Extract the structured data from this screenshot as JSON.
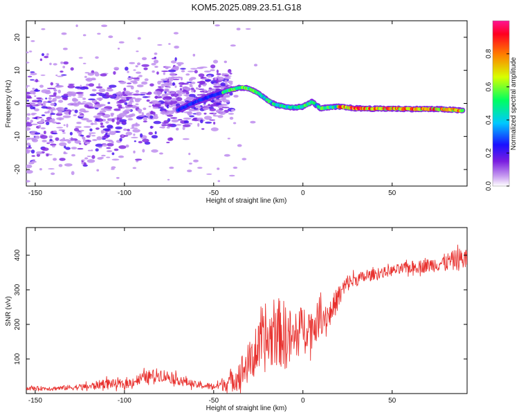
{
  "title": "KOM5.2025.089.23.51.G18",
  "chart_data": [
    {
      "type": "heatmap",
      "xlabel": "Height of straight line (km)",
      "ylabel": "Frequency (Hz)",
      "xlim": [
        -155,
        92
      ],
      "ylim": [
        -25,
        25
      ],
      "xticks": [
        -150,
        -100,
        -50,
        0,
        50
      ],
      "yticks": [
        -20,
        -10,
        0,
        10,
        20
      ],
      "colorbar": {
        "label": "Normalized spectral amplitude",
        "range": [
          0,
          1
        ],
        "ticks": [
          0.0,
          0.2,
          0.4,
          0.6,
          0.8
        ],
        "colormap": "rainbow (violet to red)"
      },
      "ridge": {
        "description": "dominant frequency trace",
        "x": [
          -70,
          -60,
          -50,
          -40,
          -35,
          -30,
          -25,
          -20,
          -15,
          -10,
          -5,
          0,
          5,
          10,
          15,
          20,
          30,
          40,
          50,
          60,
          70,
          80,
          90
        ],
        "y": [
          -2.0,
          0.5,
          2.5,
          4.2,
          4.8,
          4.5,
          3.0,
          1.0,
          -0.5,
          -1.0,
          -1.2,
          -1.0,
          0.5,
          -1.5,
          -1.2,
          -1.0,
          -1.5,
          -1.6,
          -1.6,
          -1.7,
          -1.7,
          -1.8,
          -2.2
        ]
      },
      "scatter_region": {
        "description": "noisy low-amplitude violet blobs at low heights",
        "x_range": [
          -155,
          -40
        ],
        "y_center_at_x": [
          [
            -150,
            -5
          ],
          [
            -120,
            -3
          ],
          [
            -90,
            -1
          ],
          [
            -60,
            2
          ],
          [
            -40,
            4
          ]
        ]
      }
    },
    {
      "type": "line",
      "xlabel": "Height of straight line (km)",
      "ylabel": "SNR (v/v)",
      "xlim": [
        -155,
        92
      ],
      "ylim": [
        0,
        480
      ],
      "xticks": [
        -150,
        -100,
        -50,
        0,
        50
      ],
      "yticks": [
        100,
        200,
        300,
        400
      ],
      "series": [
        {
          "color": "#e8312e",
          "x": [
            -155,
            -140,
            -120,
            -110,
            -100,
            -90,
            -80,
            -70,
            -60,
            -50,
            -40,
            -35,
            -30,
            -25,
            -20,
            -15,
            -10,
            -5,
            0,
            5,
            10,
            15,
            20,
            25,
            30,
            40,
            50,
            60,
            70,
            80,
            90
          ],
          "y": [
            15,
            15,
            20,
            30,
            25,
            45,
            55,
            40,
            25,
            20,
            35,
            60,
            90,
            130,
            150,
            180,
            170,
            150,
            200,
            190,
            220,
            230,
            280,
            320,
            330,
            345,
            355,
            365,
            370,
            380,
            390
          ],
          "noise_amplitude": [
            6,
            6,
            10,
            14,
            12,
            18,
            20,
            15,
            10,
            10,
            30,
            50,
            60,
            70,
            90,
            100,
            100,
            80,
            60,
            60,
            50,
            40,
            35,
            25,
            20,
            15,
            15,
            18,
            20,
            25,
            35
          ]
        }
      ]
    }
  ]
}
